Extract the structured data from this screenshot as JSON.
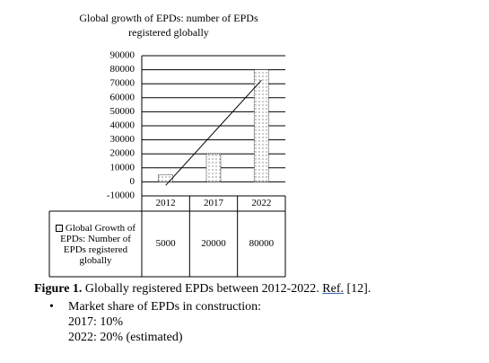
{
  "chart_data": {
    "type": "bar",
    "title": "Global growth of EPDs: number of EPDs registered globally",
    "categories": [
      "2012",
      "2017",
      "2022"
    ],
    "series": [
      {
        "name": "Global Growth of EPDs: Number of EPDs registered globally",
        "color": "#000000",
        "values": [
          5000,
          20000,
          80000
        ]
      }
    ],
    "ylim": [
      -10000,
      90000
    ],
    "yticks": [
      -10000,
      0,
      10000,
      20000,
      30000,
      40000,
      50000,
      60000,
      70000,
      80000,
      90000
    ],
    "grid": true,
    "trendline": "linear",
    "data_table": true
  },
  "caption": {
    "label": "Figure 1.",
    "text": "Globally registered EPDs between 2012-2022.",
    "ref": "Ref.",
    "citation": "[12]."
  },
  "bullets": [
    {
      "text": "Market share of EPDs in construction:",
      "lines": [
        "2017: 10%",
        "2022: 20% (estimated)"
      ]
    }
  ]
}
